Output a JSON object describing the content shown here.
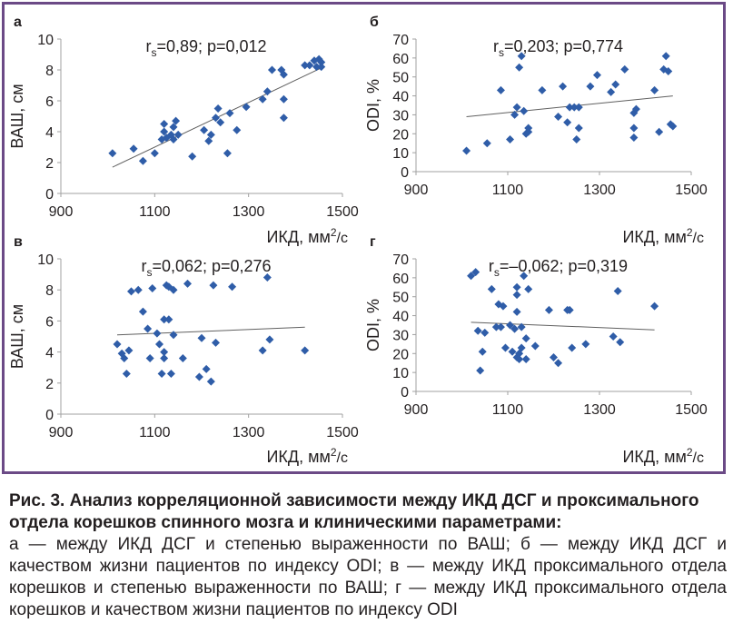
{
  "figure": {
    "colors": {
      "frame": "#6b4a86",
      "marker": "#2f5da8",
      "trend": "#606060",
      "axis": "#a0a0a0",
      "text": "#231f20"
    }
  },
  "chart_data": [
    {
      "panel_letter": "а",
      "type": "scatter",
      "xlabel_main": "ИКД, мм",
      "xlabel_sup": "2",
      "xlabel_tail": "/с",
      "ylabel": "ВАШ, см",
      "x_ticks": [
        900,
        1100,
        1300,
        1500
      ],
      "y_ticks": [
        0,
        2,
        4,
        6,
        8,
        10
      ],
      "xlim": [
        900,
        1500
      ],
      "ylim": [
        0,
        10
      ],
      "stat_prefix": "r",
      "stat_sub": "s",
      "stat_tail": "=0,89; p=0,012",
      "trend": [
        [
          1010,
          1.7
        ],
        [
          1460,
          8.2
        ]
      ],
      "points": [
        [
          1010,
          2.6
        ],
        [
          1055,
          2.9
        ],
        [
          1075,
          2.1
        ],
        [
          1100,
          2.6
        ],
        [
          1115,
          3.5
        ],
        [
          1120,
          4.5
        ],
        [
          1120,
          4.0
        ],
        [
          1125,
          3.6
        ],
        [
          1135,
          3.8
        ],
        [
          1140,
          3.5
        ],
        [
          1140,
          4.3
        ],
        [
          1145,
          4.7
        ],
        [
          1150,
          3.8
        ],
        [
          1180,
          2.4
        ],
        [
          1205,
          4.1
        ],
        [
          1215,
          3.4
        ],
        [
          1220,
          3.8
        ],
        [
          1230,
          4.9
        ],
        [
          1235,
          5.5
        ],
        [
          1240,
          4.6
        ],
        [
          1255,
          2.6
        ],
        [
          1260,
          5.2
        ],
        [
          1275,
          4.1
        ],
        [
          1295,
          5.6
        ],
        [
          1330,
          6.1
        ],
        [
          1340,
          6.6
        ],
        [
          1350,
          8.0
        ],
        [
          1370,
          8.0
        ],
        [
          1375,
          7.7
        ],
        [
          1375,
          6.1
        ],
        [
          1375,
          4.9
        ],
        [
          1420,
          8.3
        ],
        [
          1430,
          8.3
        ],
        [
          1440,
          8.6
        ],
        [
          1445,
          8.2
        ],
        [
          1450,
          8.7
        ],
        [
          1455,
          8.5
        ],
        [
          1455,
          8.2
        ]
      ]
    },
    {
      "panel_letter": "б",
      "type": "scatter",
      "xlabel_main": "ИКД, мм",
      "xlabel_sup": "2",
      "xlabel_tail": "/с",
      "ylabel": "ODI, %",
      "x_ticks": [
        900,
        1100,
        1300,
        1500
      ],
      "y_ticks": [
        0,
        10,
        20,
        30,
        40,
        50,
        60,
        70
      ],
      "xlim": [
        900,
        1500
      ],
      "ylim": [
        0,
        70
      ],
      "stat_prefix": "r",
      "stat_sub": "s",
      "stat_tail": "=0,203; p=0,774",
      "trend": [
        [
          1010,
          29
        ],
        [
          1460,
          40
        ]
      ],
      "points": [
        [
          1010,
          11
        ],
        [
          1055,
          15
        ],
        [
          1085,
          43
        ],
        [
          1105,
          17
        ],
        [
          1115,
          30
        ],
        [
          1120,
          34
        ],
        [
          1125,
          55
        ],
        [
          1130,
          61
        ],
        [
          1135,
          32
        ],
        [
          1140,
          20
        ],
        [
          1145,
          23
        ],
        [
          1145,
          21
        ],
        [
          1175,
          43
        ],
        [
          1210,
          29
        ],
        [
          1220,
          45
        ],
        [
          1230,
          26
        ],
        [
          1235,
          34
        ],
        [
          1245,
          34
        ],
        [
          1250,
          17
        ],
        [
          1255,
          34
        ],
        [
          1255,
          23
        ],
        [
          1280,
          45
        ],
        [
          1295,
          51
        ],
        [
          1325,
          42
        ],
        [
          1335,
          46
        ],
        [
          1355,
          54
        ],
        [
          1375,
          18
        ],
        [
          1375,
          23
        ],
        [
          1375,
          31
        ],
        [
          1380,
          33
        ],
        [
          1420,
          43
        ],
        [
          1430,
          21
        ],
        [
          1440,
          54
        ],
        [
          1445,
          61
        ],
        [
          1450,
          53
        ],
        [
          1455,
          25
        ],
        [
          1460,
          24
        ]
      ]
    },
    {
      "panel_letter": "в",
      "type": "scatter",
      "xlabel_main": "ИКД, мм",
      "xlabel_sup": "2",
      "xlabel_tail": "/с",
      "ylabel": "ВАШ, см",
      "x_ticks": [
        900,
        1100,
        1300,
        1500
      ],
      "y_ticks": [
        0,
        2,
        4,
        6,
        8,
        10
      ],
      "xlim": [
        900,
        1500
      ],
      "ylim": [
        0,
        10
      ],
      "stat_prefix": "r",
      "stat_sub": "s",
      "stat_tail": "=0,062; p=0,276",
      "trend": [
        [
          1020,
          5.1
        ],
        [
          1420,
          5.6
        ]
      ],
      "points": [
        [
          1020,
          4.5
        ],
        [
          1030,
          3.9
        ],
        [
          1035,
          3.6
        ],
        [
          1040,
          2.6
        ],
        [
          1045,
          4.1
        ],
        [
          1050,
          7.9
        ],
        [
          1065,
          8.0
        ],
        [
          1075,
          6.6
        ],
        [
          1085,
          5.5
        ],
        [
          1090,
          3.6
        ],
        [
          1095,
          8.1
        ],
        [
          1105,
          5.2
        ],
        [
          1110,
          4.5
        ],
        [
          1115,
          2.6
        ],
        [
          1120,
          3.6
        ],
        [
          1120,
          4.0
        ],
        [
          1120,
          6.1
        ],
        [
          1125,
          8.3
        ],
        [
          1130,
          6.1
        ],
        [
          1130,
          8.2
        ],
        [
          1135,
          2.6
        ],
        [
          1140,
          8.0
        ],
        [
          1140,
          5.1
        ],
        [
          1160,
          3.6
        ],
        [
          1170,
          8.4
        ],
        [
          1195,
          2.4
        ],
        [
          1200,
          4.9
        ],
        [
          1210,
          2.9
        ],
        [
          1220,
          2.1
        ],
        [
          1225,
          8.3
        ],
        [
          1230,
          4.6
        ],
        [
          1265,
          8.2
        ],
        [
          1330,
          4.1
        ],
        [
          1340,
          8.8
        ],
        [
          1345,
          4.8
        ],
        [
          1420,
          4.1
        ]
      ]
    },
    {
      "panel_letter": "г",
      "type": "scatter",
      "xlabel_main": "ИКД, мм",
      "xlabel_sup": "2",
      "xlabel_tail": "/с",
      "ylabel": "ODI, %",
      "x_ticks": [
        900,
        1100,
        1300,
        1500
      ],
      "y_ticks": [
        0,
        10,
        20,
        30,
        40,
        50,
        60,
        70
      ],
      "xlim": [
        900,
        1500
      ],
      "ylim": [
        0,
        70
      ],
      "stat_prefix": "r",
      "stat_sub": "s",
      "stat_tail": "=–0,062; p=0,319",
      "trend": [
        [
          1020,
          36.5
        ],
        [
          1420,
          32.5
        ]
      ],
      "points": [
        [
          1020,
          61
        ],
        [
          1030,
          63
        ],
        [
          1035,
          32
        ],
        [
          1040,
          11
        ],
        [
          1045,
          21
        ],
        [
          1050,
          31
        ],
        [
          1065,
          54
        ],
        [
          1075,
          34
        ],
        [
          1080,
          46
        ],
        [
          1085,
          34
        ],
        [
          1090,
          45
        ],
        [
          1095,
          23
        ],
        [
          1105,
          35
        ],
        [
          1110,
          21
        ],
        [
          1115,
          33
        ],
        [
          1120,
          55
        ],
        [
          1120,
          42
        ],
        [
          1120,
          51
        ],
        [
          1120,
          18
        ],
        [
          1125,
          17
        ],
        [
          1125,
          20
        ],
        [
          1130,
          34
        ],
        [
          1130,
          23
        ],
        [
          1135,
          61
        ],
        [
          1140,
          28
        ],
        [
          1140,
          17
        ],
        [
          1145,
          54
        ],
        [
          1160,
          24
        ],
        [
          1190,
          43
        ],
        [
          1200,
          18
        ],
        [
          1210,
          15
        ],
        [
          1230,
          43
        ],
        [
          1235,
          43
        ],
        [
          1240,
          23
        ],
        [
          1270,
          25
        ],
        [
          1330,
          29
        ],
        [
          1340,
          53
        ],
        [
          1345,
          26
        ],
        [
          1420,
          45
        ]
      ]
    }
  ],
  "caption": {
    "title": "Рис. 3. Анализ корреляционной зависимости между ИКД ДСГ и проксимального отдела корешков спинного мозга и клиническими параметрами:",
    "body": "а — между ИКД ДСГ и степенью выраженности по ВАШ; б — между ИКД ДСГ и качеством жизни пациентов по индексу ODI; в — между ИКД проксимального отдела корешков и степенью выраженности по ВАШ; г — между ИКД проксимального отдела корешков и качеством жизни пациентов по индексу ODI"
  }
}
